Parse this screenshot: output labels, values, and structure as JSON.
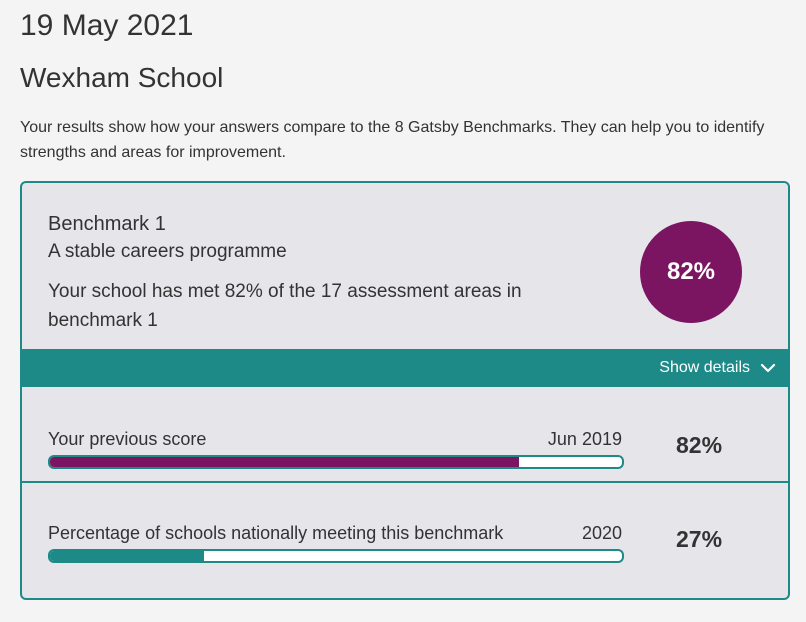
{
  "header": {
    "date": "19 May 2021",
    "school": "Wexham School",
    "intro": "Your results show how your answers compare to the 8 Gatsby Benchmarks. They can help you to identify strengths and areas for improvement."
  },
  "benchmark": {
    "title": "Benchmark 1",
    "subtitle": "A stable careers programme",
    "description": "Your school has met 82% of the 17 assessment areas in benchmark 1",
    "score": "82%",
    "show_details_label": "Show details"
  },
  "rows": [
    {
      "label": "Your previous score",
      "date": "Jun 2019",
      "value": "82%",
      "progress": 0.82,
      "color": "#7b1562"
    },
    {
      "label": "Percentage of schools nationally meeting this benchmark",
      "date": "2020",
      "value": "27%",
      "progress": 0.27,
      "color": "#1e8a88"
    }
  ],
  "colors": {
    "accent_teal": "#1e8a88",
    "accent_purple": "#7b1562"
  },
  "icons": {
    "show_details": "chevron-down-icon"
  }
}
